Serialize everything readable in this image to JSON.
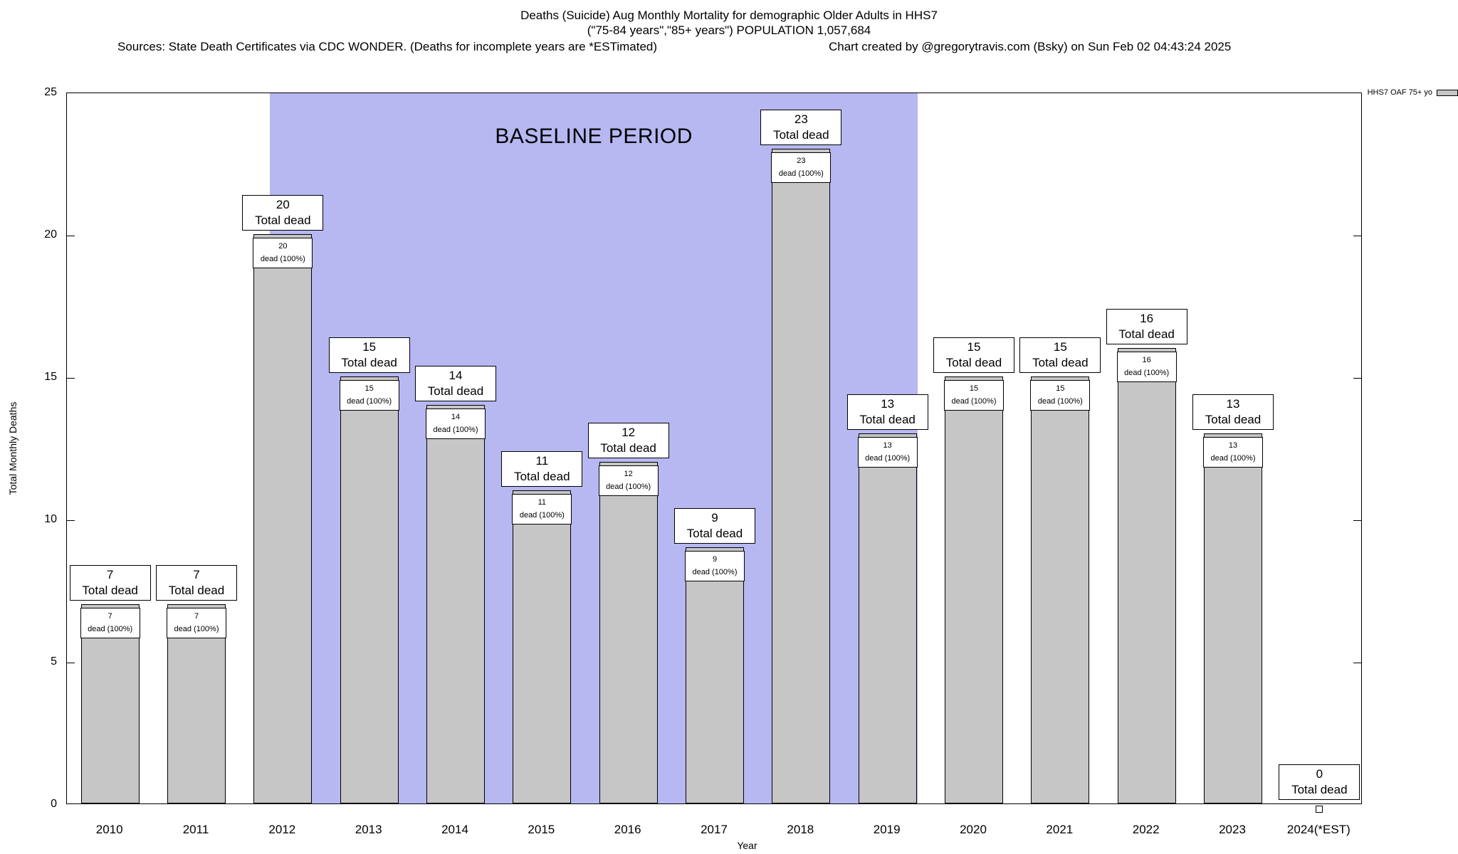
{
  "titles": {
    "line1": "Deaths (Suicide) Aug Monthly Mortality for demographic Older Adults in HHS7",
    "line2": "(\"75-84 years\",\"85+ years\") POPULATION 1,057,684",
    "sources": "Sources: State Death Certificates via CDC WONDER. (Deaths for incomplete years are *ESTimated)",
    "credit": "Chart created by @gregorytravis.com (Bsky) on Sun Feb 02 04:43:24 2025"
  },
  "chart_data": {
    "type": "bar",
    "title": "Deaths (Suicide) Aug Monthly Mortality for demographic Older Adults in HHS7",
    "subtitle": "(\"75-84 years\",\"85+ years\") POPULATION 1,057,684",
    "categories": [
      "2010",
      "2011",
      "2012",
      "2013",
      "2014",
      "2015",
      "2016",
      "2017",
      "2018",
      "2019",
      "2020",
      "2021",
      "2022",
      "2023",
      "2024(*EST)"
    ],
    "values": [
      7,
      7,
      20,
      15,
      14,
      11,
      12,
      9,
      23,
      13,
      15,
      15,
      16,
      13,
      0
    ],
    "xlabel": "Year",
    "ylabel": "Total Monthly Deaths",
    "ylim": [
      0,
      25
    ],
    "yticks": [
      0,
      5,
      10,
      15,
      20,
      25
    ],
    "grid": "off",
    "legend": {
      "label": "HHS7 OAF 75+ yo",
      "position": "top-right"
    },
    "bar_color": "#c6c6c6",
    "band_color": "#b7b7f2",
    "outer_label_text": "Total dead",
    "inner_label_text": "dead (100%)",
    "annotations": [
      {
        "text": "BASELINE PERIOD",
        "from_category": "2012",
        "to_category": "2019"
      }
    ]
  }
}
